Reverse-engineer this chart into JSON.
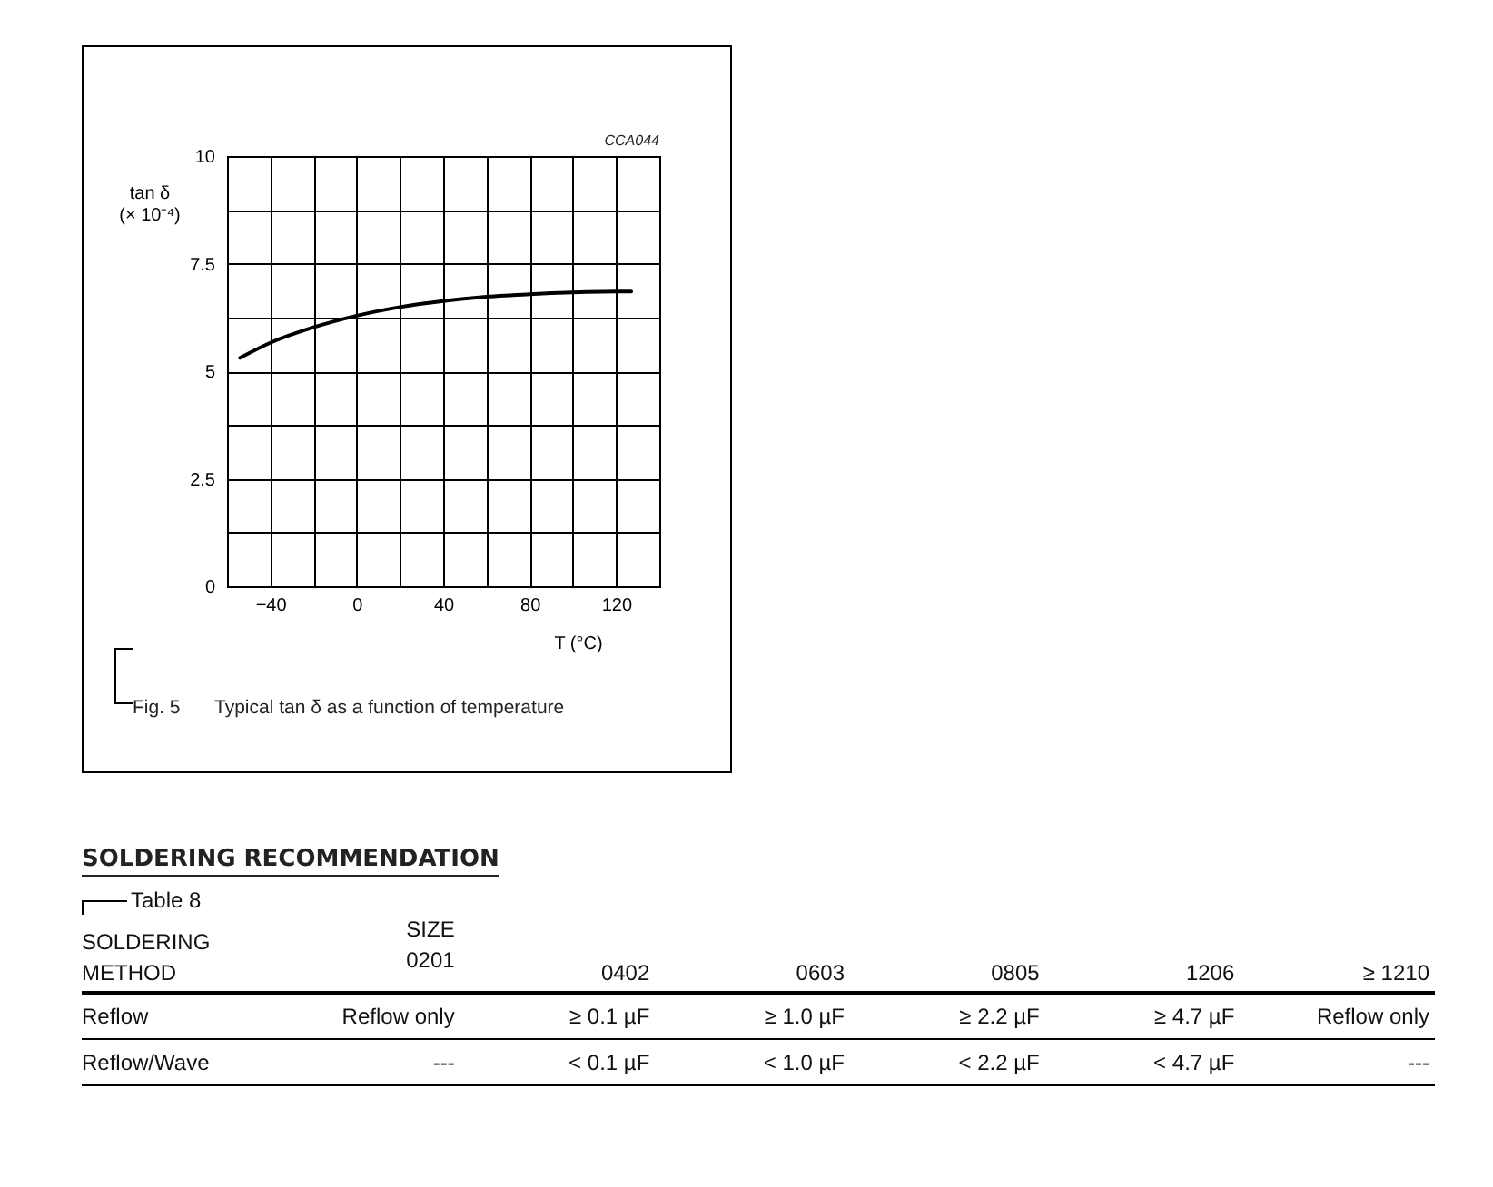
{
  "chart_data": [
    {
      "type": "line",
      "x": [
        -54,
        -40,
        -20,
        0,
        20,
        40,
        60,
        80,
        100,
        120,
        127
      ],
      "values": [
        5.31,
        5.66,
        6.02,
        6.29,
        6.49,
        6.63,
        6.73,
        6.79,
        6.83,
        6.85,
        6.85
      ],
      "color": "#000000",
      "line_style": "solid",
      "xlabel": "T (°C)",
      "ylabel": "tan δ\n(× 10⁻⁴)",
      "xlim": [
        -60,
        140
      ],
      "ylim": [
        0,
        10
      ],
      "xticks": [
        -40,
        {
          "value": -20,
          "label": null
        },
        0,
        {
          "value": 20,
          "label": null
        },
        40,
        {
          "value": 60,
          "label": null
        },
        80,
        {
          "value": 100,
          "label": null
        },
        120
      ],
      "yticks": [
        0,
        {
          "value": 1.25,
          "label": null
        },
        2.5,
        {
          "value": 3.75,
          "label": null
        },
        5,
        {
          "value": 6.25,
          "label": null
        },
        7.5,
        {
          "value": 8.75,
          "label": null
        },
        10
      ],
      "grid": true,
      "annotations": [
        "CCA044",
        "Fig. 5",
        "Typical tan δ as a function of temperature"
      ]
    },
    {
      "type": "other",
      "title": "SOLDERING RECOMMENDATION",
      "subtitle": "Table 8",
      "annotations": [
        "SOLDERING\nMETHOD",
        "SIZE\n0201",
        "0402",
        "0603",
        "0805",
        "1206",
        "≥ 1210",
        "Reflow",
        "Reflow only",
        "≥ 0.1 µF",
        "≥ 1.0 µF",
        "≥ 2.2 µF",
        "≥ 4.7 µF",
        "Reflow only",
        "Reflow/Wave",
        "---",
        "< 0.1 µF",
        "< 1.0 µF",
        "< 2.2 µF",
        "< 4.7 µF",
        "---"
      ]
    }
  ]
}
